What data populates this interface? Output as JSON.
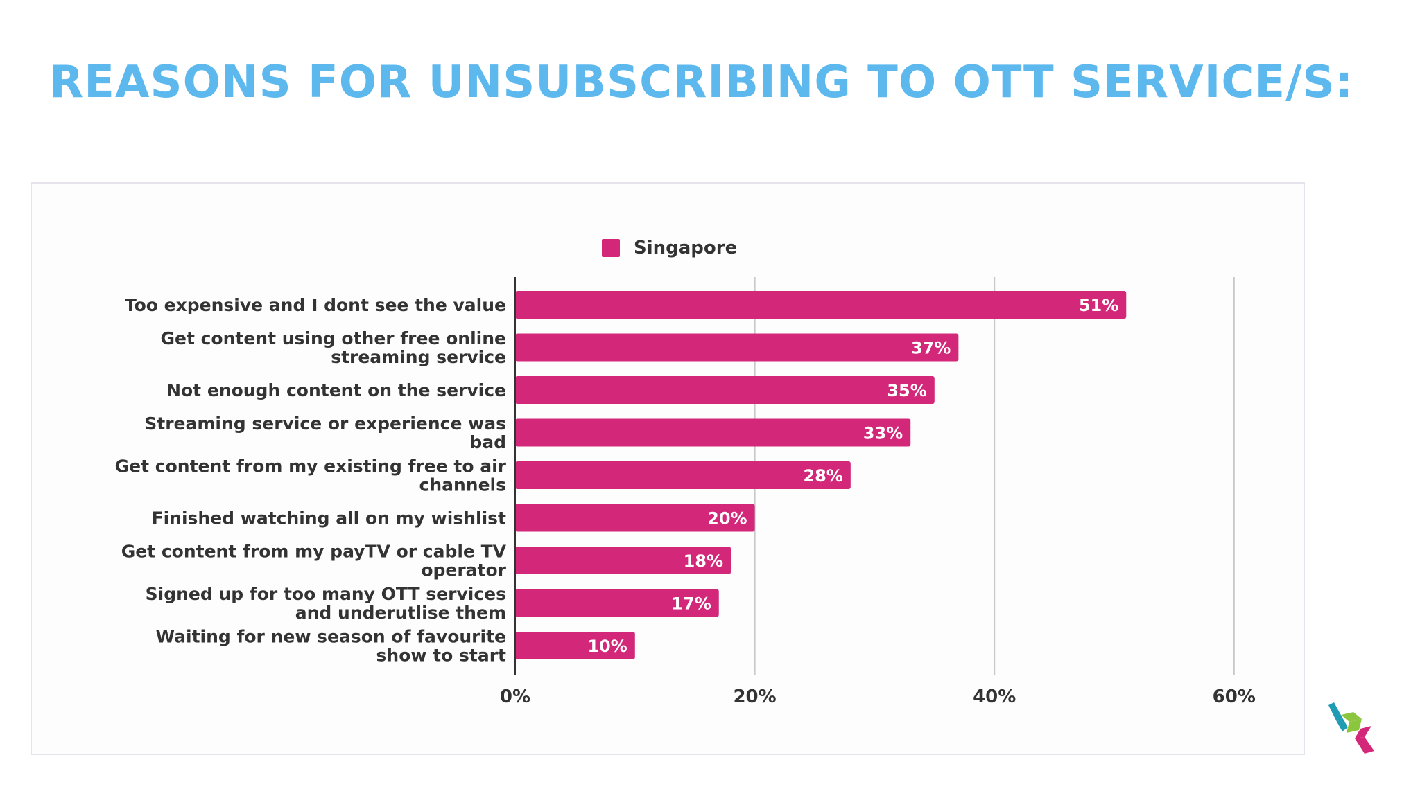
{
  "slide": {
    "title": "REASONS FOR UNSUBSCRIBING TO OTT SERVICE/S:"
  },
  "colors": {
    "title": "#5db8ee",
    "bar": "#d3287a",
    "label_text": "#333333",
    "gridline": "#c8c8c8",
    "logo_teal": "#1f9bb3",
    "logo_green": "#8cc63f",
    "logo_pink": "#d3287a"
  },
  "logo": {
    "icon": "cube-chevron-logo-icon"
  },
  "chart_data": {
    "type": "bar",
    "orientation": "horizontal",
    "legend": {
      "position": "top",
      "entries": [
        "Singapore"
      ]
    },
    "categories": [
      [
        "Too expensive and I dont see the value"
      ],
      [
        "Get content using other free online",
        "streaming service"
      ],
      [
        "Not enough content on the service"
      ],
      [
        "Streaming service or experience was",
        "bad"
      ],
      [
        "Get content from my existing free to air",
        "channels"
      ],
      [
        "Finished watching all on my wishlist"
      ],
      [
        "Get content from my payTV or cable TV",
        "operator"
      ],
      [
        "Signed up for too many OTT services",
        "and underutlise them"
      ],
      [
        "Waiting for new season of favourite",
        "show to start"
      ]
    ],
    "series": [
      {
        "name": "Singapore",
        "values": [
          51,
          37,
          35,
          33,
          28,
          20,
          18,
          17,
          10
        ],
        "data_labels": [
          "51%",
          "37%",
          "35%",
          "33%",
          "28%",
          "20%",
          "18%",
          "17%",
          "10%"
        ]
      }
    ],
    "xlim": [
      0,
      60
    ],
    "xticks": [
      0,
      20,
      40,
      60
    ],
    "xtick_labels": [
      "0%",
      "20%",
      "40%",
      "60%"
    ],
    "grid": true
  }
}
